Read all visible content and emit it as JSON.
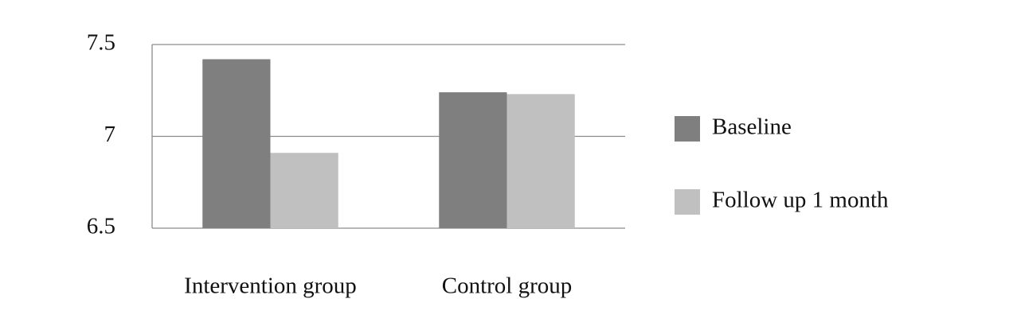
{
  "chart_data": {
    "type": "bar",
    "categories": [
      "Intervention group",
      "Control group"
    ],
    "series": [
      {
        "name": "Baseline",
        "color": "#7f7f7f",
        "values": [
          7.42,
          7.24
        ]
      },
      {
        "name": "Follow up 1 month",
        "color": "#c0c0c0",
        "values": [
          6.91,
          7.23
        ]
      }
    ],
    "ylim": [
      6.5,
      7.5
    ],
    "yticks": [
      6.5,
      7,
      7.5
    ],
    "grid": true,
    "legend": "right"
  }
}
